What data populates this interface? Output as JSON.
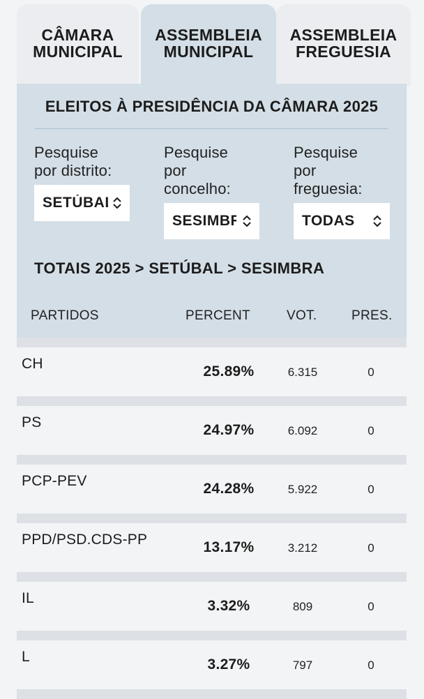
{
  "tabs": [
    {
      "line1": "CÂMARA",
      "line2": "MUNICIPAL",
      "active": false
    },
    {
      "line1": "ASSEMBLEIA",
      "line2": "MUNICIPAL",
      "active": true
    },
    {
      "line1": "ASSEMBLEIA",
      "line2": "FREGUESIA",
      "active": false
    }
  ],
  "panel": {
    "title": "ELEITOS À PRESIDÊNCIA DA CÂMARA 2025",
    "filters": {
      "district": {
        "label_l1": "Pesquise",
        "label_l2": "por distrito:",
        "value": "SETÚBAL"
      },
      "municipality": {
        "label_l1": "Pesquise",
        "label_l2": "por",
        "label_l3": "concelho:",
        "value": "SESIMBRA"
      },
      "parish": {
        "label_l1": "Pesquise",
        "label_l2": "por",
        "label_l3": "freguesia:",
        "value": "TODAS"
      }
    },
    "breadcrumb": "TOTAIS 2025 > SETÚBAL > SESIMBRA",
    "columns": {
      "party": "PARTIDOS",
      "percent": "PERCENT",
      "votes": "VOT.",
      "presidents": "PRES."
    }
  },
  "results": [
    {
      "party": "CH",
      "percent": "25.89%",
      "votes": "6.315",
      "presidents": "0"
    },
    {
      "party": "PS",
      "percent": "24.97%",
      "votes": "6.092",
      "presidents": "0"
    },
    {
      "party": "PCP-PEV",
      "percent": "24.28%",
      "votes": "5.922",
      "presidents": "0"
    },
    {
      "party": "PPD/PSD.CDS-PP",
      "percent": "13.17%",
      "votes": "3.212",
      "presidents": "0"
    },
    {
      "party": "IL",
      "percent": "3.32%",
      "votes": "809",
      "presidents": "0"
    },
    {
      "party": "L",
      "percent": "3.27%",
      "votes": "797",
      "presidents": "0"
    }
  ],
  "icons": {
    "select_arrow": "chevron-up-down-icon"
  }
}
